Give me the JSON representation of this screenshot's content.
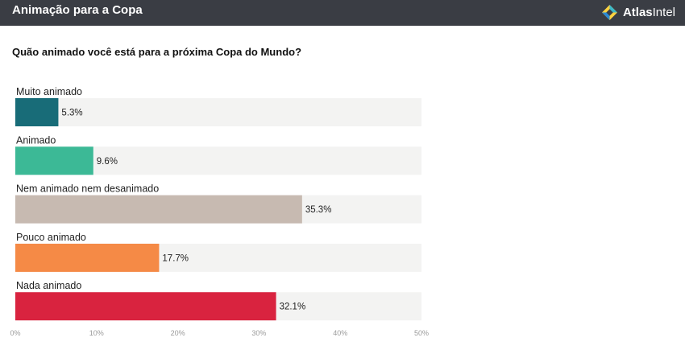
{
  "header": {
    "title": "Animação para a Copa",
    "brand": {
      "part1": "Atlas",
      "part2": "Intel"
    }
  },
  "question": "Quão animado você está para a próxima Copa do Mundo?",
  "chart_data": {
    "type": "bar",
    "orientation": "horizontal",
    "categories": [
      "Muito animado",
      "Animado",
      "Nem animado nem desanimado",
      "Pouco animado",
      "Nada animado"
    ],
    "values": [
      5.3,
      9.6,
      35.3,
      17.7,
      32.1
    ],
    "value_labels": [
      "5.3%",
      "9.6%",
      "35.3%",
      "17.7%",
      "32.1%"
    ],
    "colors": [
      "#186c78",
      "#3cb996",
      "#c7bab1",
      "#f58a46",
      "#d9233f"
    ],
    "track_color": "#f3f3f2",
    "xlim": [
      0,
      50
    ],
    "xticks": [
      0,
      10,
      20,
      30,
      40,
      50
    ],
    "xtick_labels": [
      "0%",
      "10%",
      "20%",
      "30%",
      "40%",
      "50%"
    ],
    "grid": false,
    "legend": "none"
  }
}
